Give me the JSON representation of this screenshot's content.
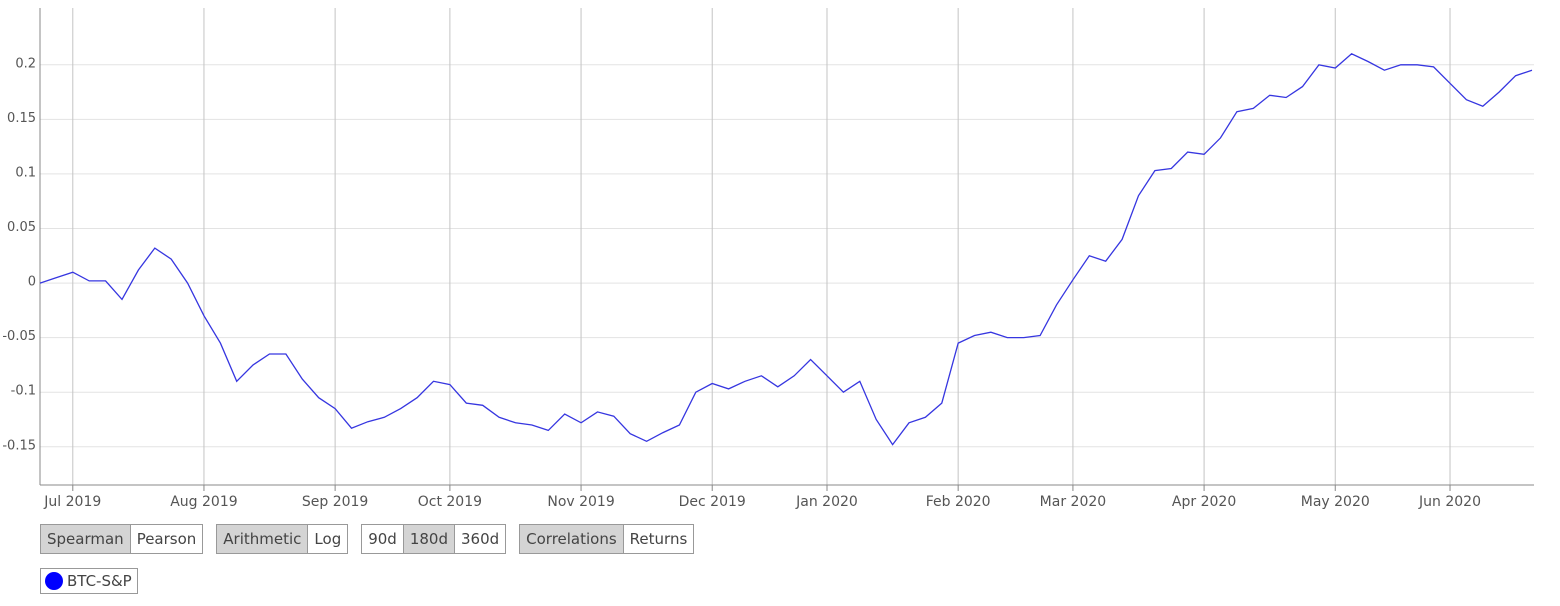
{
  "chart_data": {
    "type": "line",
    "categories": [
      null,
      null,
      "Jul 2019",
      null,
      null,
      null,
      null,
      null,
      null,
      null,
      "Aug 2019",
      null,
      null,
      null,
      null,
      null,
      null,
      null,
      "Sep 2019",
      null,
      null,
      null,
      null,
      null,
      null,
      "Oct 2019",
      null,
      null,
      null,
      null,
      null,
      null,
      null,
      "Nov 2019",
      null,
      null,
      null,
      null,
      null,
      null,
      null,
      "Dec 2019",
      null,
      null,
      null,
      null,
      null,
      null,
      "Jan 2020",
      null,
      null,
      null,
      null,
      null,
      null,
      null,
      "Feb 2020",
      null,
      null,
      null,
      null,
      null,
      null,
      "Mar 2020",
      null,
      null,
      null,
      null,
      null,
      null,
      null,
      "Apr 2020",
      null,
      null,
      null,
      null,
      null,
      null,
      null,
      "May 2020",
      null,
      null,
      null,
      null,
      null,
      null,
      "Jun 2020",
      null,
      null,
      null,
      null,
      null
    ],
    "series": [
      {
        "name": "BTC-S&P",
        "color": "#3636e0",
        "marker_color": "#0000ff",
        "values": [
          0,
          0.005,
          0.01,
          0.002,
          0.002,
          -0.015,
          0.012,
          0.032,
          0.022,
          0,
          -0.03,
          -0.055,
          -0.09,
          -0.075,
          -0.065,
          -0.065,
          -0.088,
          -0.105,
          -0.115,
          -0.133,
          -0.127,
          -0.123,
          -0.115,
          -0.105,
          -0.09,
          -0.093,
          -0.11,
          -0.112,
          -0.123,
          -0.128,
          -0.13,
          -0.135,
          -0.12,
          -0.128,
          -0.118,
          -0.122,
          -0.138,
          -0.145,
          -0.137,
          -0.13,
          -0.1,
          -0.092,
          -0.097,
          -0.09,
          -0.085,
          -0.095,
          -0.085,
          -0.07,
          -0.085,
          -0.1,
          -0.09,
          -0.125,
          -0.148,
          -0.128,
          -0.123,
          -0.11,
          -0.055,
          -0.048,
          -0.045,
          -0.05,
          -0.05,
          -0.048,
          -0.02,
          0.003,
          0.025,
          0.02,
          0.04,
          0.08,
          0.103,
          0.105,
          0.12,
          0.118,
          0.133,
          0.157,
          0.16,
          0.172,
          0.17,
          0.18,
          0.2,
          0.197,
          0.21,
          0.203,
          0.195,
          0.2,
          0.2,
          0.198,
          0.183,
          0.168,
          0.162,
          0.175,
          0.19,
          0.195
        ]
      }
    ],
    "ylim": [
      -0.185,
      0.252
    ],
    "yticks": [
      -0.15,
      -0.1,
      -0.05,
      0,
      0.05,
      0.1,
      0.15,
      0.2
    ],
    "grid": true
  },
  "controls": [
    {
      "options": [
        "Spearman",
        "Pearson"
      ],
      "selected": 0
    },
    {
      "options": [
        "Arithmetic",
        "Log"
      ],
      "selected": 0
    },
    {
      "options": [
        "90d",
        "180d",
        "360d"
      ],
      "selected": 1
    },
    {
      "options": [
        "Correlations",
        "Returns"
      ],
      "selected": 0
    }
  ]
}
